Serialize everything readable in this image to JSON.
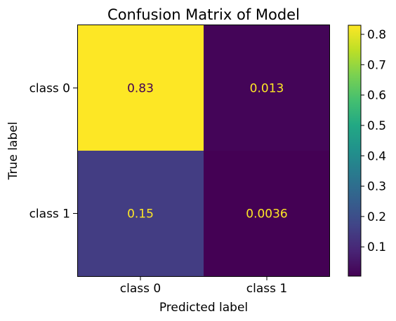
{
  "chart_data": {
    "type": "heatmap",
    "title": "Confusion Matrix of Model",
    "xlabel": "Predicted label",
    "ylabel": "True label",
    "x_categories": [
      "class 0",
      "class 1"
    ],
    "y_categories": [
      "class 0",
      "class 1"
    ],
    "values": [
      [
        0.83,
        0.013
      ],
      [
        0.15,
        0.0036
      ]
    ],
    "cell_labels": [
      [
        "0.83",
        "0.013"
      ],
      [
        "0.15",
        "0.0036"
      ]
    ],
    "colormap": "viridis",
    "colorbar": {
      "range": [
        0.0036,
        0.83
      ],
      "ticks": [
        0.1,
        0.2,
        0.3,
        0.4,
        0.5,
        0.6,
        0.7,
        0.8
      ],
      "tick_labels": [
        "0.1",
        "0.2",
        "0.3",
        "0.4",
        "0.5",
        "0.6",
        "0.7",
        "0.8"
      ]
    },
    "colors": {
      "text_on_dark": "#fde725",
      "text_on_light": "#440154"
    }
  }
}
